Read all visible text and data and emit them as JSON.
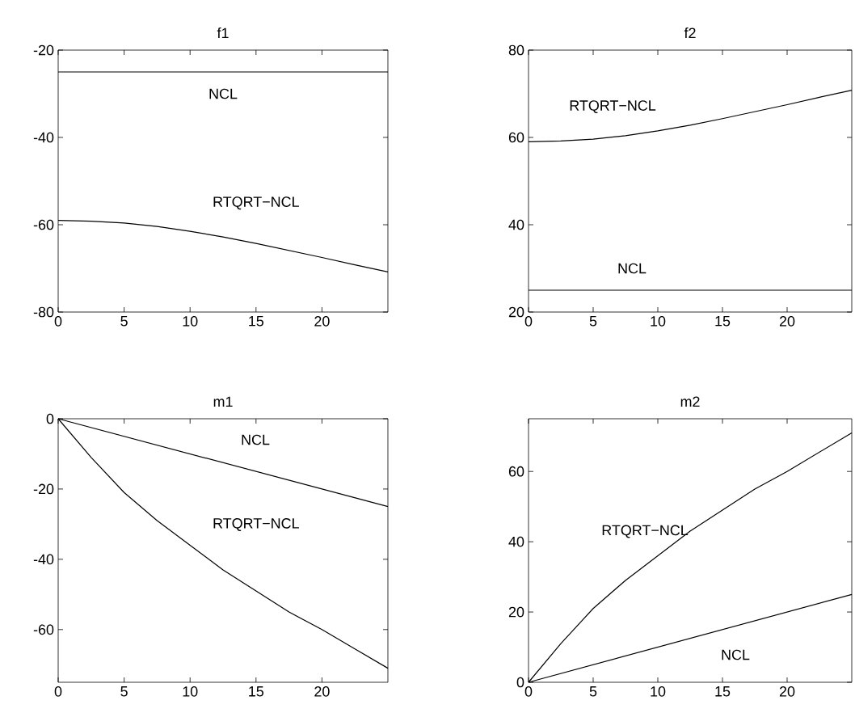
{
  "chart_data": [
    {
      "type": "line",
      "title": "f1",
      "xlim": [
        0,
        25
      ],
      "ylim": [
        -80,
        -20
      ],
      "xticks": [
        0,
        5,
        10,
        15,
        20
      ],
      "yticks": [
        -80,
        -60,
        -40,
        -20
      ],
      "grid": false,
      "marker": "none",
      "line_style": "solid",
      "series": [
        {
          "name": "NCL",
          "color": "#000000",
          "x": [
            0,
            25
          ],
          "values": [
            -25,
            -25
          ]
        },
        {
          "name": "RTQRT−NCL",
          "color": "#000000",
          "x": [
            0,
            2.5,
            5,
            7.5,
            10,
            12.5,
            15,
            17.5,
            20,
            22.5,
            25
          ],
          "values": [
            -59,
            -59.2,
            -59.6,
            -60.4,
            -61.5,
            -62.8,
            -64.3,
            -65.9,
            -67.5,
            -69.2,
            -70.8
          ]
        }
      ]
    },
    {
      "type": "line",
      "title": "f2",
      "xlim": [
        0,
        25
      ],
      "ylim": [
        20,
        80
      ],
      "xticks": [
        0,
        5,
        10,
        15,
        20
      ],
      "yticks": [
        20,
        40,
        60,
        80
      ],
      "grid": false,
      "marker": "none",
      "line_style": "solid",
      "series": [
        {
          "name": "NCL",
          "color": "#000000",
          "x": [
            0,
            25
          ],
          "values": [
            25,
            25
          ]
        },
        {
          "name": "RTQRT−NCL",
          "color": "#000000",
          "x": [
            0,
            2.5,
            5,
            7.5,
            10,
            12.5,
            15,
            17.5,
            20,
            22.5,
            25
          ],
          "values": [
            59,
            59.2,
            59.6,
            60.4,
            61.5,
            62.8,
            64.3,
            65.9,
            67.5,
            69.2,
            70.8
          ]
        }
      ]
    },
    {
      "type": "line",
      "title": "m1",
      "xlim": [
        0,
        25
      ],
      "ylim": [
        -75,
        0
      ],
      "xticks": [
        0,
        5,
        10,
        15,
        20
      ],
      "yticks": [
        -60,
        -40,
        -20,
        0
      ],
      "grid": false,
      "marker": "none",
      "line_style": "solid",
      "series": [
        {
          "name": "NCL",
          "color": "#000000",
          "x": [
            0,
            25
          ],
          "values": [
            0,
            -25
          ]
        },
        {
          "name": "RTQRT−NCL",
          "color": "#000000",
          "x": [
            0,
            2.5,
            5,
            7.5,
            10,
            12.5,
            15,
            17.5,
            20,
            22.5,
            25
          ],
          "values": [
            0,
            -11,
            -21,
            -29,
            -36,
            -43,
            -49,
            -55,
            -60,
            -65.5,
            -71
          ]
        }
      ]
    },
    {
      "type": "line",
      "title": "m2",
      "xlim": [
        0,
        25
      ],
      "ylim": [
        0,
        75
      ],
      "xticks": [
        0,
        5,
        10,
        15,
        20
      ],
      "yticks": [
        0,
        20,
        40,
        60
      ],
      "grid": false,
      "marker": "none",
      "line_style": "solid",
      "series": [
        {
          "name": "NCL",
          "color": "#000000",
          "x": [
            0,
            25
          ],
          "values": [
            0,
            25
          ]
        },
        {
          "name": "RTQRT−NCL",
          "color": "#000000",
          "x": [
            0,
            2.5,
            5,
            7.5,
            10,
            12.5,
            15,
            17.5,
            20,
            22.5,
            25
          ],
          "values": [
            0,
            11,
            21,
            29,
            36,
            43,
            49,
            55,
            60,
            65.5,
            71
          ]
        }
      ]
    }
  ]
}
